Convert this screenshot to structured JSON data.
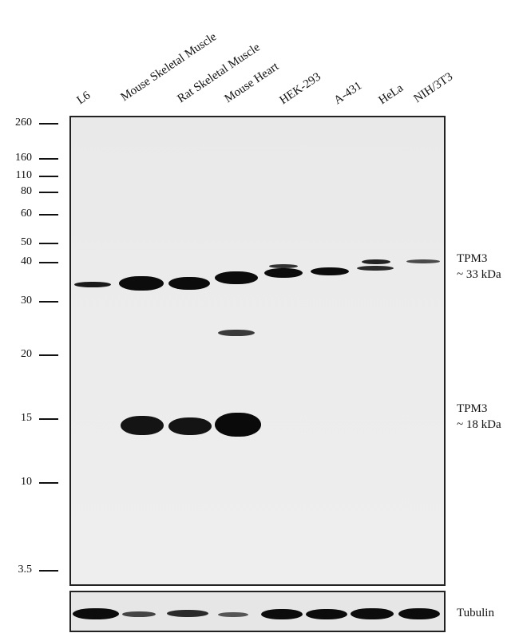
{
  "lanes": [
    "L6",
    "Mouse Skeletal Muscle",
    "Rat Skeletal Muscle",
    "Mouse Heart",
    "HEK-293",
    "A-431",
    "HeLa",
    "NIH/3T3"
  ],
  "markers": [
    "260",
    "160",
    "110",
    "80",
    "60",
    "50",
    "40",
    "30",
    "20",
    "15",
    "10",
    "3.5"
  ],
  "annotations": {
    "tpm3_33": {
      "line1": "TPM3",
      "line2": "~ 33 kDa"
    },
    "tpm3_18": {
      "line1": "TPM3",
      "line2": "~ 18 kDa"
    },
    "tubulin": "Tubulin"
  }
}
